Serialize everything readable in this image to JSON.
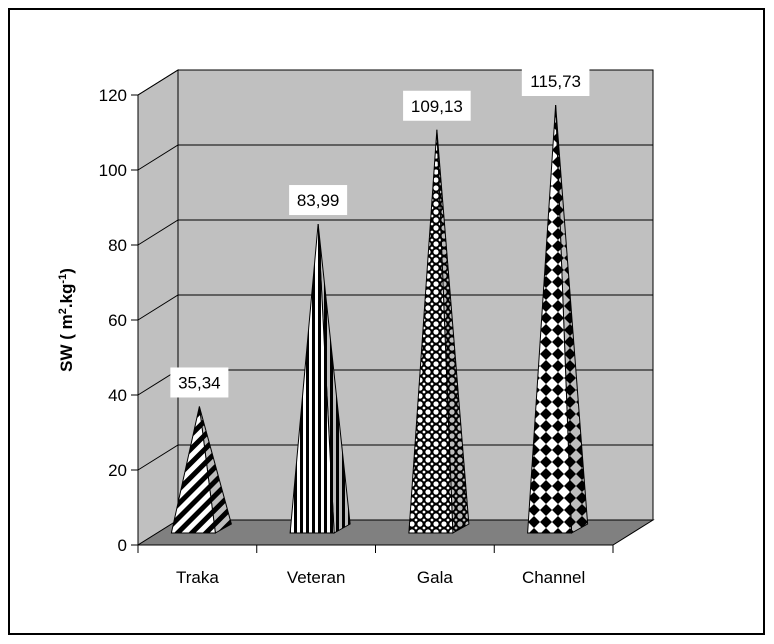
{
  "chart_data": {
    "type": "bar",
    "style": "3d-pyramid",
    "categories": [
      "Traka",
      "Veteran",
      "Gala",
      "Channel"
    ],
    "values": [
      35.34,
      83.99,
      109.13,
      115.73
    ],
    "data_labels": [
      "35,34",
      "83,99",
      "109,13",
      "115,73"
    ],
    "ylabel_main": "SW ( m",
    "ylabel_sup1": "2",
    "ylabel_mid": ".kg",
    "ylabel_sup2": "-1",
    "ylabel_end": ")",
    "ylim": [
      0,
      120
    ],
    "yticks": [
      0,
      20,
      40,
      60,
      80,
      100,
      120
    ],
    "grid": true,
    "legend": "none",
    "colors": {
      "wall": "#c0c0c0",
      "floor": "#808080",
      "frame": "#000000",
      "fill": "#ffffff"
    },
    "patterns": [
      "diagonal-stripes",
      "vertical-stripes",
      "circles",
      "diamonds"
    ]
  }
}
